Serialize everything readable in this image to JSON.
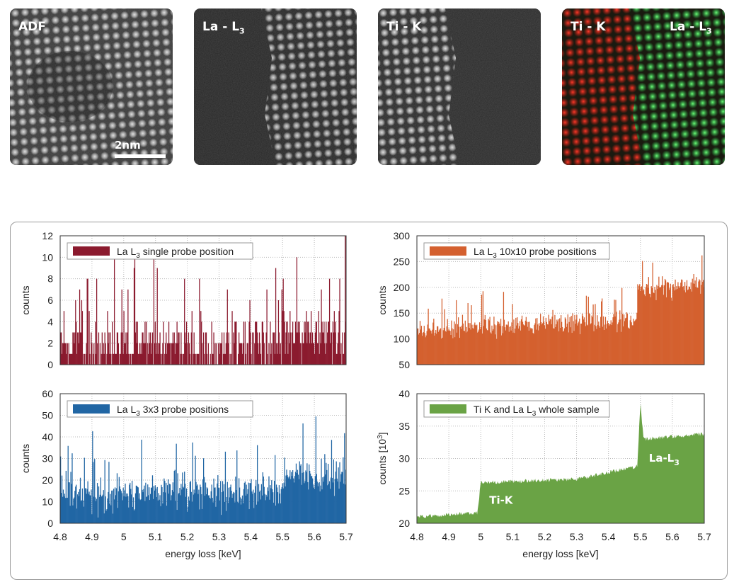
{
  "images": [
    {
      "label": "ADF",
      "scale_bar": "2nm"
    },
    {
      "label_main": "La - L",
      "label_sub": "3"
    },
    {
      "label_main": "Ti - K"
    },
    {
      "label_left": "Ti - K",
      "label_right_main": "La - L",
      "label_right_sub": "3"
    }
  ],
  "colors": {
    "red_map": "#d42a1e",
    "green_map": "#2fbf4a"
  },
  "chart_data": [
    {
      "type": "bar",
      "legend": {
        "prefix": "La L",
        "sub": "3",
        "suffix": "  single probe position"
      },
      "color": "#8b1a2e",
      "ylabel": "counts",
      "xlabel": "",
      "xlim": [
        4.8,
        5.7
      ],
      "ylim": [
        0,
        12
      ],
      "yticks": [
        0,
        2,
        4,
        6,
        8,
        10,
        12
      ],
      "xticks": [
        4.8,
        4.9,
        5,
        5.1,
        5.2,
        5.3,
        5.4,
        5.5,
        5.6,
        5.7
      ],
      "show_xtick_labels": false,
      "grid": true,
      "profile": {
        "edges": [
          5.5
        ],
        "levels_before": [
          1.6,
          1.8
        ],
        "levels_after": [
          2.6,
          2.6
        ],
        "noise": 1.8,
        "peak_max": 12,
        "integer": true
      },
      "seed": 3
    },
    {
      "type": "bar",
      "legend": {
        "prefix": "La L",
        "sub": "3",
        "suffix": "  10x10 probe positions"
      },
      "color": "#d4602f",
      "ylabel": "counts",
      "xlabel": "",
      "xlim": [
        4.8,
        5.7
      ],
      "ylim": [
        50,
        300
      ],
      "yticks": [
        50,
        100,
        150,
        200,
        250,
        300
      ],
      "xticks": [
        4.8,
        4.9,
        5,
        5.1,
        5.2,
        5.3,
        5.4,
        5.5,
        5.6,
        5.7
      ],
      "show_xtick_labels": false,
      "grid": true,
      "profile": {
        "edges": [
          5.49
        ],
        "levels_before": [
          118,
          138
        ],
        "levels_after": [
          198,
          205
        ],
        "noise": 14,
        "peak_max": 262
      },
      "seed": 7
    },
    {
      "type": "bar",
      "legend": {
        "prefix": "La L",
        "sub": "3",
        "suffix": "  3x3 probe positions"
      },
      "color": "#2166a4",
      "ylabel": "counts",
      "xlabel": "energy loss [keV]",
      "xlim": [
        4.8,
        5.7
      ],
      "ylim": [
        0,
        60
      ],
      "yticks": [
        0,
        10,
        20,
        30,
        40,
        50,
        60
      ],
      "xticks": [
        4.8,
        4.9,
        5,
        5.1,
        5.2,
        5.3,
        5.4,
        5.5,
        5.6,
        5.7
      ],
      "xtick_labels": [
        "4.8",
        "4.9",
        "5",
        "5.1",
        "5.2",
        "5.3",
        "5.4",
        "5.5",
        "5.6",
        "5.7"
      ],
      "show_xtick_labels": true,
      "grid": true,
      "profile": {
        "edges": [
          5.5
        ],
        "levels_before": [
          13,
          15
        ],
        "levels_after": [
          22,
          22
        ],
        "noise": 6,
        "peak_max": 52
      },
      "seed": 11
    },
    {
      "type": "area",
      "legend": {
        "prefix": "Ti K and La L",
        "sub": "3",
        "suffix": "  whole sample"
      },
      "color": "#6aa345",
      "ylabel_main": "counts [10",
      "ylabel_sup": "3",
      "ylabel_end": "]",
      "xlabel": "energy loss [keV]",
      "xlim": [
        4.8,
        5.7
      ],
      "ylim": [
        20,
        40
      ],
      "yticks": [
        20,
        25,
        30,
        35,
        40
      ],
      "xticks": [
        4.8,
        4.9,
        5,
        5.1,
        5.2,
        5.3,
        5.4,
        5.5,
        5.6,
        5.7
      ],
      "xtick_labels": [
        "4.8",
        "4.9",
        "5",
        "5.1",
        "5.2",
        "5.3",
        "5.4",
        "5.5",
        "5.6",
        "5.7"
      ],
      "show_xtick_labels": true,
      "grid": true,
      "profile": {
        "segments": [
          [
            4.8,
            21.0
          ],
          [
            4.99,
            21.6
          ],
          [
            5.0,
            26.3
          ],
          [
            5.3,
            26.8
          ],
          [
            5.49,
            28.8
          ],
          [
            5.5,
            38.5
          ],
          [
            5.51,
            33.0
          ],
          [
            5.7,
            33.8
          ]
        ],
        "noise": 0.3
      },
      "annotations": [
        {
          "text_main": "Ti-K",
          "x": 5.0,
          "y": 23.0
        },
        {
          "text_main": "La-L",
          "text_sub": "3",
          "x": 5.5,
          "y": 29.5
        }
      ],
      "seed": 5
    }
  ]
}
